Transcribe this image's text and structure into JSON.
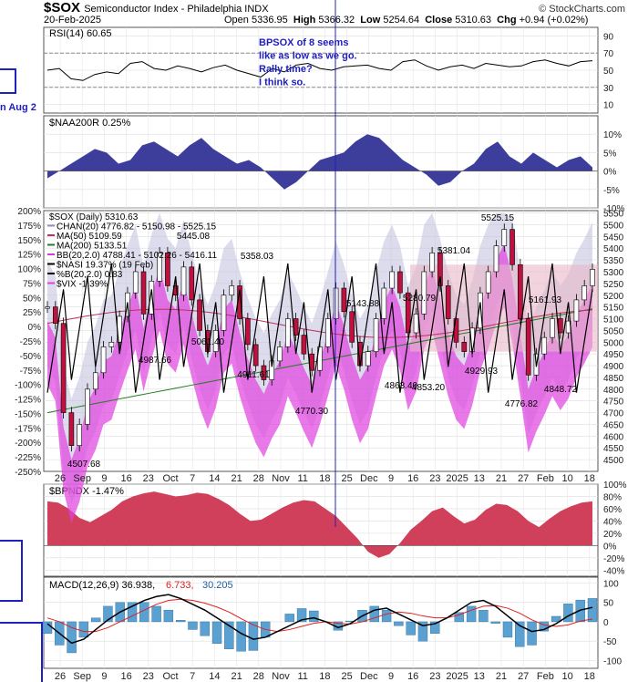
{
  "header": {
    "symbol": "$SOX",
    "name": "Semiconductor Index - Philadelphia INDX",
    "date": "20-Feb-2025",
    "brand": "© StockCharts.com",
    "open_label": "Open",
    "open": "5336.95",
    "high_label": "High",
    "high": "5366.32",
    "low_label": "Low",
    "low": "5254.64",
    "close_label": "Close",
    "close": "5310.63",
    "chg_label": "Chg",
    "chg": "+0.94 (+0.02%)"
  },
  "annotations": {
    "note_lines": [
      "BPSOX of 8 seems",
      "like as low as we go.",
      "Rally time?",
      "I think so."
    ],
    "left_label": "n Aug 2"
  },
  "colors": {
    "navy": "#3d3d9c",
    "crimson": "#d0405a",
    "magenta": "#e040e0",
    "chan": "#c0c0dc",
    "pink": "#e8b8c8",
    "macd_bar": "#5aa0d0",
    "vline": "#2020c0"
  },
  "chart_data": [
    {
      "type": "line",
      "title": "RSI(14) 60.65",
      "ylim": [
        0,
        100
      ],
      "yticks": [
        10,
        30,
        50,
        70,
        90
      ],
      "hlines": [
        30,
        70
      ],
      "series": [
        {
          "name": "RSI(14)",
          "values": [
            50,
            52,
            40,
            38,
            45,
            48,
            46,
            58,
            60,
            52,
            50,
            55,
            52,
            48,
            53,
            56,
            50,
            46,
            42,
            52,
            48,
            56,
            58,
            52,
            50,
            54,
            55,
            56,
            52,
            50,
            60,
            62,
            55,
            50,
            54,
            56,
            52,
            58,
            56,
            54,
            55,
            60,
            62,
            58,
            55,
            60,
            61
          ]
        }
      ]
    },
    {
      "type": "area",
      "title": "$NAA200R 0.25%",
      "ylim": [
        -10,
        15
      ],
      "yticks": [
        10,
        5,
        0,
        -5,
        -10
      ],
      "series": [
        {
          "name": "$NAA200R",
          "values": [
            -2,
            0,
            2,
            4,
            6,
            5,
            2,
            3,
            7,
            8,
            6,
            4,
            7,
            9,
            6,
            4,
            2,
            3,
            1,
            -2,
            -5,
            -3,
            0,
            3,
            4,
            5,
            8,
            10,
            9,
            6,
            3,
            1,
            -1,
            -4,
            -3,
            0,
            2,
            6,
            8,
            4,
            2,
            5,
            3,
            1,
            3,
            4,
            1
          ]
        }
      ]
    },
    {
      "type": "candlestick",
      "title": "$SOX (Daily) 5310.63",
      "ylim": [
        4450,
        5560
      ],
      "yticks_right": [
        5550,
        5500,
        5450,
        5400,
        5350,
        5300,
        5250,
        5200,
        5150,
        5100,
        5050,
        5000,
        4950,
        4900,
        4850,
        4800,
        4750,
        4700,
        4650,
        4600,
        4550,
        4500
      ],
      "yticks_left": [
        "200%",
        "175%",
        "150%",
        "125%",
        "100%",
        "75%",
        "50%",
        "25%",
        "0%",
        "-25%",
        "-50%",
        "-75%",
        "-100%",
        "-125%",
        "-150%",
        "-175%",
        "-200%",
        "-225%",
        "-250%"
      ],
      "xticks": [
        "26",
        "Sep",
        "9",
        "16",
        "23",
        "Oct",
        "7",
        "14",
        "21",
        "28",
        "Nov",
        "11",
        "18",
        "25",
        "Dec",
        "9",
        "16",
        "23",
        "2025",
        "13",
        "21",
        "27",
        "Feb",
        "10",
        "18"
      ],
      "legend": [
        {
          "label": "$SOX (Daily) 5310.63",
          "color": "#000000"
        },
        {
          "label": "CHAN(20) 4776.82 - 5150.98 - 5525.15",
          "color": "#9090c0"
        },
        {
          "label": "MA(50) 5109.59",
          "color": "#c03060"
        },
        {
          "label": "MA(200) 5133.51",
          "color": "#208020"
        },
        {
          "label": "BB(20,2.0) 4788.41 - 5102.26 - 5416.11",
          "color": "#d040d0"
        },
        {
          "label": "$NASI 19.37% (19 Feb)",
          "color": "#000000"
        },
        {
          "label": "%B(20,2.0) 0.83",
          "color": "#000000"
        },
        {
          "label": "$VIX -1.39%",
          "color": "#e040e0"
        }
      ],
      "price_labels": [
        "4507.68",
        "4987.66",
        "5445.08",
        "5358.03",
        "5061.40",
        "4911.61",
        "4770.30",
        "5143.88",
        "4863.40",
        "5280.79",
        "4853.20",
        "5381.04",
        "4929.93",
        "5525.15",
        "4776.82",
        "5161.93",
        "4848.72"
      ],
      "close": [
        5150,
        5080,
        4700,
        4560,
        4650,
        4800,
        4870,
        4980,
        5000,
        5110,
        5210,
        5300,
        5120,
        5260,
        5380,
        5240,
        5200,
        5320,
        5180,
        5050,
        4960,
        5050,
        5200,
        5240,
        5100,
        4990,
        4900,
        4840,
        4920,
        4980,
        5100,
        5030,
        4950,
        4880,
        4980,
        5100,
        5230,
        5130,
        5000,
        4900,
        4960,
        5100,
        5230,
        5300,
        5210,
        5040,
        5120,
        5300,
        5380,
        5240,
        5100,
        5000,
        4960,
        5060,
        5210,
        5300,
        5410,
        5480,
        5330,
        5100,
        4860,
        4950,
        5020,
        5100,
        5040,
        5090,
        5180,
        5240,
        5310
      ]
    },
    {
      "type": "area",
      "title": "$BPNDX -1.47%",
      "ylim": [
        -50,
        100
      ],
      "yticks": [
        100,
        80,
        60,
        40,
        20,
        0,
        -20,
        -40
      ],
      "series": [
        {
          "name": "$BPNDX",
          "values": [
            72,
            70,
            60,
            45,
            38,
            48,
            58,
            72,
            80,
            85,
            88,
            84,
            80,
            82,
            86,
            84,
            76,
            66,
            52,
            40,
            42,
            52,
            62,
            70,
            74,
            72,
            60,
            48,
            30,
            12,
            -10,
            -20,
            -14,
            4,
            26,
            40,
            56,
            62,
            48,
            36,
            42,
            58,
            68,
            66,
            56,
            40,
            30,
            44,
            56,
            64,
            70,
            72
          ]
        }
      ]
    },
    {
      "type": "line",
      "title": "MACD(12,26,9)",
      "ylim": [
        -120,
        115
      ],
      "yticks": [
        100,
        50,
        0,
        -50,
        -100
      ],
      "legend": [
        {
          "label": "MACD(12,26,9)",
          "value": "36.938",
          "color": "#000000"
        },
        {
          "label": "signal",
          "value": "6.733",
          "color": "#e02020"
        },
        {
          "label": "histogram",
          "value": "30.205",
          "color": "#2060a0"
        }
      ],
      "series": [
        {
          "name": "MACD",
          "values": [
            -5,
            -30,
            -55,
            -45,
            -20,
            5,
            25,
            40,
            55,
            65,
            70,
            60,
            45,
            30,
            10,
            -10,
            -30,
            -45,
            -40,
            -25,
            -10,
            5,
            10,
            0,
            -15,
            -5,
            15,
            30,
            35,
            20,
            5,
            -10,
            -5,
            10,
            30,
            50,
            55,
            40,
            15,
            -10,
            -25,
            -20,
            -5,
            15,
            30,
            37
          ]
        },
        {
          "name": "signal",
          "values": [
            10,
            0,
            -15,
            -25,
            -25,
            -15,
            0,
            15,
            30,
            45,
            55,
            58,
            55,
            48,
            38,
            25,
            8,
            -8,
            -20,
            -25,
            -20,
            -12,
            -4,
            0,
            -4,
            -6,
            0,
            10,
            20,
            25,
            22,
            15,
            10,
            10,
            18,
            30,
            40,
            42,
            35,
            22,
            5,
            -8,
            -12,
            -8,
            2,
            7
          ]
        }
      ]
    }
  ]
}
